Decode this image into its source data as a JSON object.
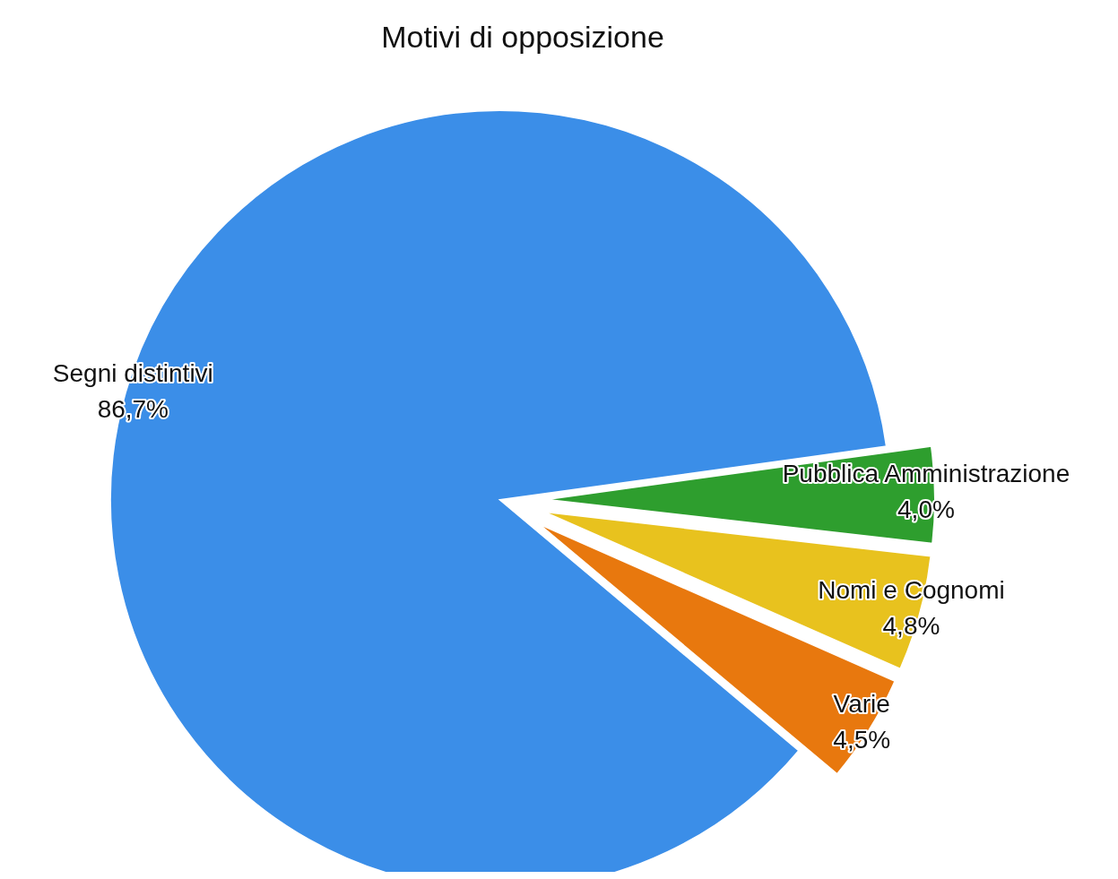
{
  "chart_data": {
    "type": "pie",
    "title": "Motivi di opposizione",
    "categories": [
      "Segni distintivi",
      "Pubblica Amministrazione",
      "Nomi e Cognomi",
      "Varie"
    ],
    "values": [
      86.7,
      4.0,
      4.8,
      4.5
    ],
    "value_labels": [
      "86,7%",
      "4,0%",
      "4,8%",
      "4,5%"
    ],
    "colors": [
      "#3b8ee8",
      "#2e9e2e",
      "#e8c21e",
      "#e8780e"
    ]
  }
}
